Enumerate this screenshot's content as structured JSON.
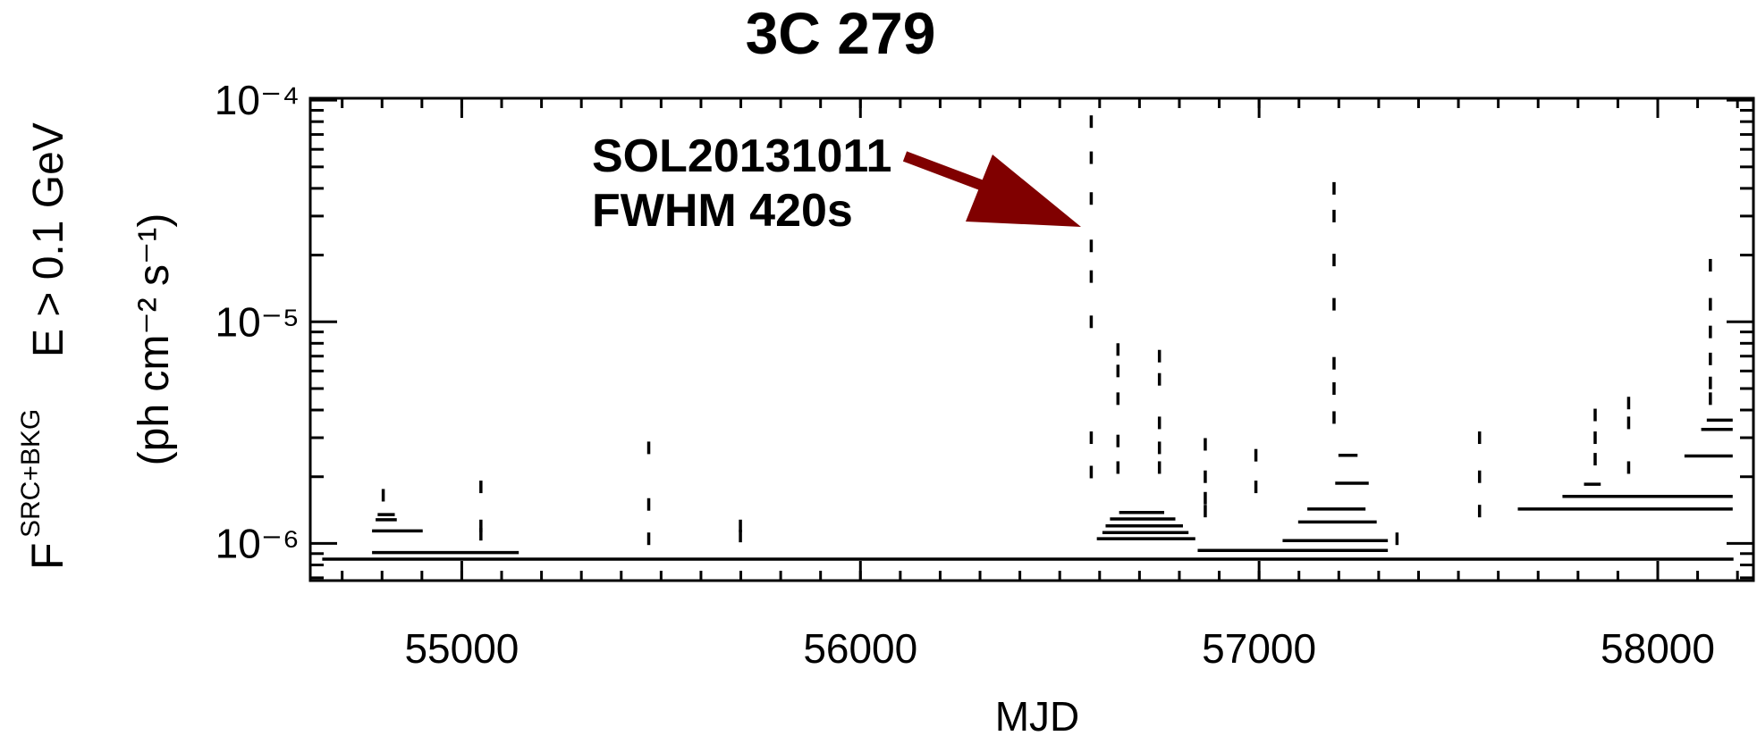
{
  "chart_data": {
    "type": "blocks",
    "title": "3C 279",
    "x_label": "MJD",
    "y_label_symbol": "F",
    "y_label_superscript": "SRC+BKG",
    "y_label": "E > 0.1 GeV",
    "y_units": "(ph cm⁻² s⁻¹)",
    "log_y": true,
    "color": "#000000",
    "xlim": [
      54620,
      58240
    ],
    "xticks": [
      55000,
      56000,
      57000,
      58000
    ],
    "ylim": [
      6.8e-07,
      0.000102
    ],
    "yticks": [
      {
        "value": 1e-06,
        "label": "10⁻⁶"
      },
      {
        "value": 1e-05,
        "label": "10⁻⁵"
      },
      {
        "value": 0.0001,
        "label": "10⁻⁴"
      }
    ],
    "annotations": [
      "SOL20131011",
      "FWHM 420s"
    ],
    "annotation_color": "#800000",
    "blocks": {
      "x_start": [
        54650,
        54775,
        56846,
        57059,
        57649,
        57761,
        56593,
        56607,
        56615,
        56626,
        56649,
        57098,
        57121,
        57191,
        57199,
        58067,
        58109,
        58123,
        54775,
        54784,
        54789,
        57815
      ],
      "x_end": [
        58190,
        55143,
        57323,
        57323,
        58188,
        58188,
        56840,
        56823,
        56809,
        56790,
        56762,
        57295,
        57267,
        57275,
        57247,
        58188,
        58188,
        58188,
        54902,
        54837,
        54832,
        57857
      ],
      "values": [
        8.5e-07,
        9.1e-07,
        9.3e-07,
        1.03e-06,
        1.43e-06,
        1.63e-06,
        1.05e-06,
        1.12e-06,
        1.2e-06,
        1.29e-06,
        1.38e-06,
        1.25e-06,
        1.43e-06,
        1.87e-06,
        2.5e-06,
        2.48e-06,
        3.27e-06,
        3.6e-06,
        1.14e-06,
        1.28e-06,
        1.35e-06,
        1.85e-06
      ]
    },
    "short_blocks": {
      "x": [
        56579,
        56579,
        56579,
        56579,
        56579,
        56579,
        56579,
        56579,
        56646,
        56646,
        56646,
        56646,
        56646,
        56750,
        56750,
        56750,
        56750,
        56750,
        56865,
        56865,
        56865,
        56865,
        56992,
        56992,
        57188,
        57188,
        57188,
        57188,
        57188,
        57188,
        57188,
        57346,
        57553,
        57553,
        57553,
        55469,
        55469,
        55469,
        55699,
        55699,
        55048,
        55048,
        55048,
        54803,
        57843,
        57843,
        57843,
        57927,
        57927,
        57927,
        58132,
        58132,
        58132,
        58132,
        58132,
        58132
      ],
      "values": [
        8e-05,
        5.5e-05,
        3.6e-05,
        2.2e-05,
        1.6e-05,
        1e-05,
        3e-06,
        2.1e-06,
        7.5e-06,
        6e-06,
        4.5e-06,
        2.9e-06,
        2.2e-06,
        7e-06,
        5.5e-06,
        3.5e-06,
        2.7e-06,
        2.2e-06,
        2.8e-06,
        2e-06,
        1.6e-06,
        1.4e-06,
        2.5e-06,
        1.8e-06,
        4e-05,
        3e-05,
        1.9e-05,
        1.2e-05,
        6.5e-06,
        5e-06,
        3.7e-06,
        1.05e-06,
        3e-06,
        2e-06,
        1.4e-06,
        2.7e-06,
        1.5e-06,
        1.05e-06,
        1.2e-06,
        1.08e-06,
        1.8e-06,
        1.2e-06,
        1.1e-06,
        1.65e-06,
        3.8e-06,
        3e-06,
        2.4e-06,
        4.3e-06,
        3.5e-06,
        2.2e-06,
        1.8e-05,
        1.2e-05,
        9e-06,
        6.8e-06,
        5.3e-06,
        4.5e-06
      ]
    }
  }
}
